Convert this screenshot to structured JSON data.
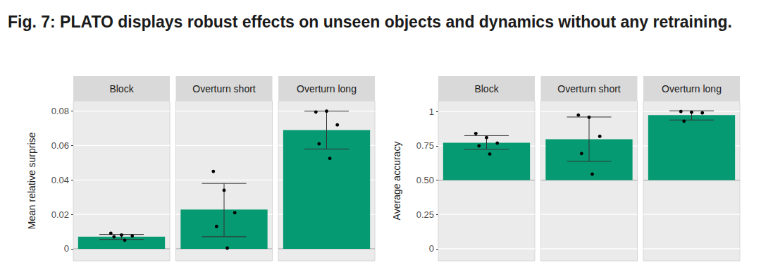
{
  "title": "Fig. 7: PLATO displays robust effects on unseen objects and dynamics without any retraining.",
  "chart_data": [
    {
      "type": "bar",
      "ylabel": "Mean relative surprise",
      "categories": [
        "Block",
        "Overturn short",
        "Overturn long"
      ],
      "values": [
        0.007,
        0.0228,
        0.069
      ],
      "error_low": [
        0.0054,
        0.007,
        0.058
      ],
      "error_high": [
        0.0083,
        0.038,
        0.08
      ],
      "points": [
        [
          0.009,
          0.008,
          0.0075,
          0.007,
          0.005
        ],
        [
          0.045,
          0.034,
          0.021,
          0.013,
          0.0004
        ],
        [
          0.0795,
          0.08,
          0.072,
          0.061,
          0.0525
        ]
      ],
      "baseline": 0,
      "color": "#069a72",
      "ylim": [
        -0.007,
        0.086
      ],
      "yticks": [
        0,
        0.02,
        0.04,
        0.06,
        0.08
      ],
      "grid": true
    },
    {
      "type": "bar",
      "ylabel": "Average accuracy",
      "categories": [
        "Block",
        "Overturn short",
        "Overturn long"
      ],
      "values": [
        0.772,
        0.798,
        0.974
      ],
      "error_low": [
        0.725,
        0.637,
        0.938
      ],
      "error_high": [
        0.824,
        0.96,
        1.005
      ],
      "points": [
        [
          0.84,
          0.81,
          0.77,
          0.75,
          0.69
        ],
        [
          0.974,
          0.958,
          0.819,
          0.694,
          0.544
        ],
        [
          1.0,
          0.995,
          0.99,
          0.93
        ]
      ],
      "baseline": 0.5,
      "color": "#069a72",
      "ylim": [
        -0.088,
        1.078
      ],
      "yticks": [
        0,
        0.25,
        {
          "value": 0.5,
          "label": "0.50"
        },
        0.75,
        1
      ],
      "grid": true
    }
  ]
}
